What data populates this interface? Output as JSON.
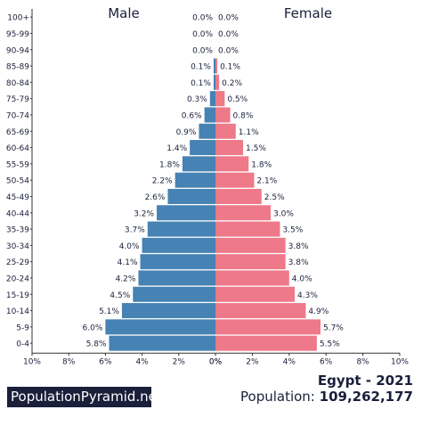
{
  "chart_data": {
    "type": "bar",
    "orientation": "horizontal-pyramid",
    "left_label": "Male",
    "right_label": "Female",
    "categories": [
      "100+",
      "95-99",
      "90-94",
      "85-89",
      "80-84",
      "75-79",
      "70-74",
      "65-69",
      "60-64",
      "55-59",
      "50-54",
      "45-49",
      "40-44",
      "35-39",
      "30-34",
      "25-29",
      "20-24",
      "15-19",
      "10-14",
      "5-9",
      "0-4"
    ],
    "series": [
      {
        "name": "Male",
        "values": [
          0.0,
          0.0,
          0.0,
          0.1,
          0.1,
          0.3,
          0.6,
          0.9,
          1.4,
          1.8,
          2.2,
          2.6,
          3.2,
          3.7,
          4.0,
          4.1,
          4.2,
          4.5,
          5.1,
          6.0,
          5.8
        ],
        "labels": [
          "0.0%",
          "0.0%",
          "0.0%",
          "0.1%",
          "0.1%",
          "0.3%",
          "0.6%",
          "0.9%",
          "1.4%",
          "1.8%",
          "2.2%",
          "2.6%",
          "3.2%",
          "3.7%",
          "4.0%",
          "4.1%",
          "4.2%",
          "4.5%",
          "5.1%",
          "6.0%",
          "5.8%"
        ],
        "color": "#4682b4"
      },
      {
        "name": "Female",
        "values": [
          0.0,
          0.0,
          0.0,
          0.1,
          0.2,
          0.5,
          0.8,
          1.1,
          1.5,
          1.8,
          2.1,
          2.5,
          3.0,
          3.5,
          3.8,
          3.8,
          4.0,
          4.3,
          4.9,
          5.7,
          5.5
        ],
        "labels": [
          "0.0%",
          "0.0%",
          "0.0%",
          "0.1%",
          "0.2%",
          "0.5%",
          "0.8%",
          "1.1%",
          "1.5%",
          "1.8%",
          "2.1%",
          "2.5%",
          "3.0%",
          "3.5%",
          "3.8%",
          "3.8%",
          "4.0%",
          "4.3%",
          "4.9%",
          "5.7%",
          "5.5%"
        ],
        "color": "#ee7989"
      }
    ],
    "xlim": [
      0,
      10
    ],
    "male_ticks": [
      "10%",
      "8%",
      "6%",
      "4%",
      "2%",
      "0%"
    ],
    "female_ticks": [
      "0%",
      "2%",
      "4%",
      "6%",
      "8%",
      "10%"
    ],
    "grid": false
  },
  "footer": {
    "brand": "PopulationPyramid.net",
    "country_year": "Egypt - 2021",
    "population_label": "Population:",
    "population_value": "109,262,177"
  }
}
